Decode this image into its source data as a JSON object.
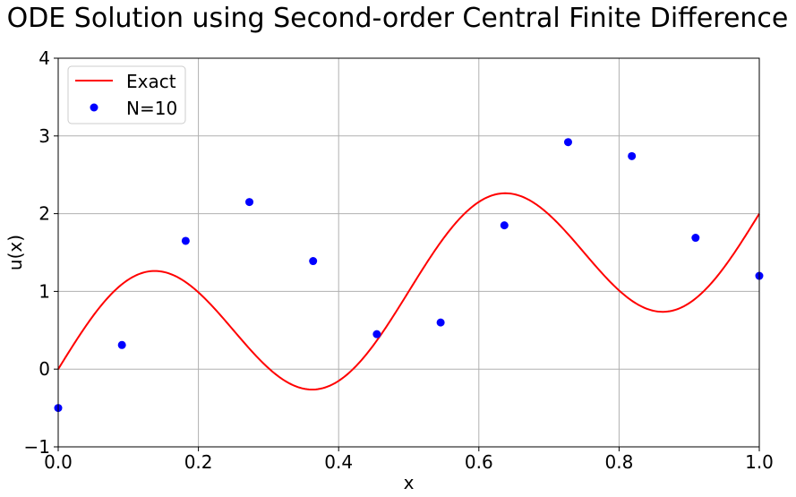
{
  "chart_data": {
    "type": "line",
    "title": "ODE Solution using Second-order Central Finite Difference",
    "xlabel": "x",
    "ylabel": "u(x)",
    "xlim": [
      0.0,
      1.0
    ],
    "ylim": [
      -1,
      4
    ],
    "xticks": [
      "0.0",
      "0.2",
      "0.4",
      "0.6",
      "0.8",
      "1.0"
    ],
    "yticks": [
      "−1",
      "0",
      "1",
      "2",
      "3",
      "4"
    ],
    "grid": true,
    "legend_position": "top-left",
    "series": [
      {
        "name": "Exact",
        "kind": "line",
        "color": "#ff0000",
        "formula": "u(x) = 2x + sin(4*pi*x)"
      },
      {
        "name": "N=10",
        "kind": "scatter",
        "color": "#0000ff",
        "x": [
          0.0,
          0.0909,
          0.1818,
          0.2727,
          0.3636,
          0.4545,
          0.5455,
          0.6364,
          0.7273,
          0.8182,
          0.9091,
          1.0
        ],
        "y": [
          -0.5,
          0.31,
          1.65,
          2.15,
          1.39,
          0.45,
          0.6,
          1.85,
          2.92,
          2.74,
          1.69,
          1.2
        ]
      }
    ]
  }
}
